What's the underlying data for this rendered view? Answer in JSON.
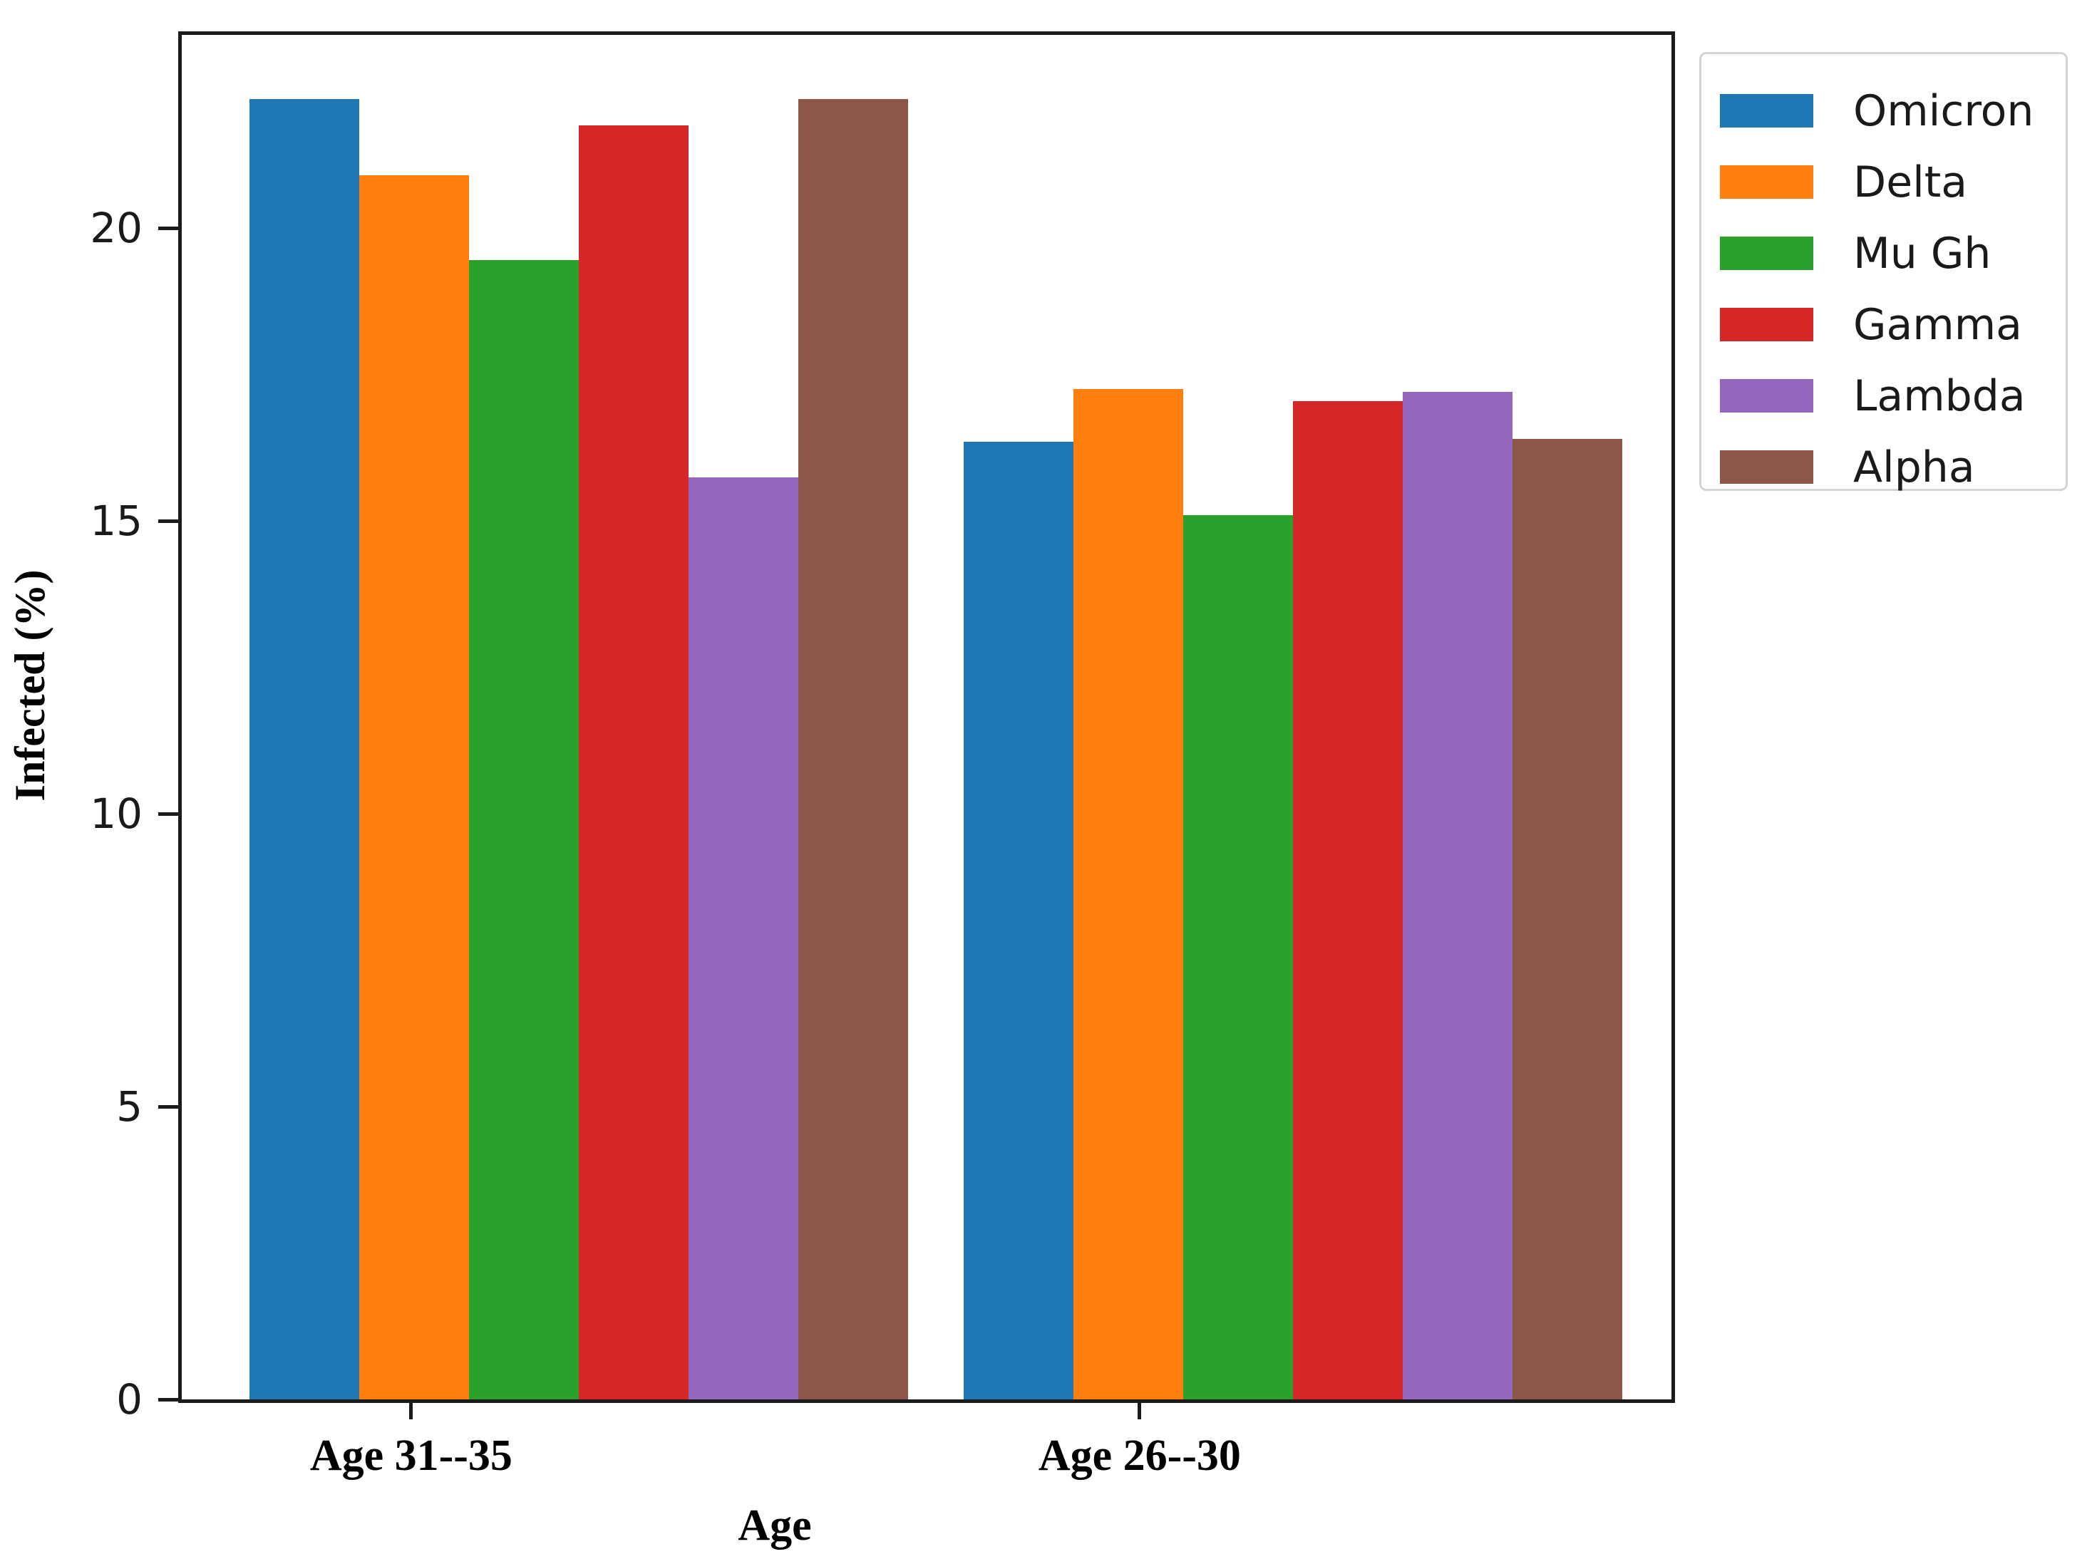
{
  "chart_data": {
    "type": "bar",
    "title": "",
    "xlabel": "Age",
    "ylabel": "Infected (%)",
    "categories": [
      "Age 31--35",
      "Age 26--30"
    ],
    "series": [
      {
        "name": "Omicron",
        "color": "#1f77b4",
        "values": [
          22.2,
          16.35
        ]
      },
      {
        "name": "Delta",
        "color": "#ff7f0e",
        "values": [
          20.9,
          17.25
        ]
      },
      {
        "name": "Mu Gh",
        "color": "#2ca02c",
        "values": [
          19.45,
          15.1
        ]
      },
      {
        "name": "Gamma",
        "color": "#d62728",
        "values": [
          21.75,
          17.05
        ]
      },
      {
        "name": "Lambda",
        "color": "#9467bd",
        "values": [
          15.75,
          17.2
        ]
      },
      {
        "name": "Alpha",
        "color": "#8c564b",
        "values": [
          22.2,
          16.4
        ]
      }
    ],
    "ylim": [
      0,
      23.3
    ],
    "yticks": [
      0,
      5,
      10,
      15,
      20
    ],
    "grid": false,
    "legend_position": "outside-upper-right",
    "axis_color": "#1b1b1b",
    "background_color": "#ffffff"
  }
}
